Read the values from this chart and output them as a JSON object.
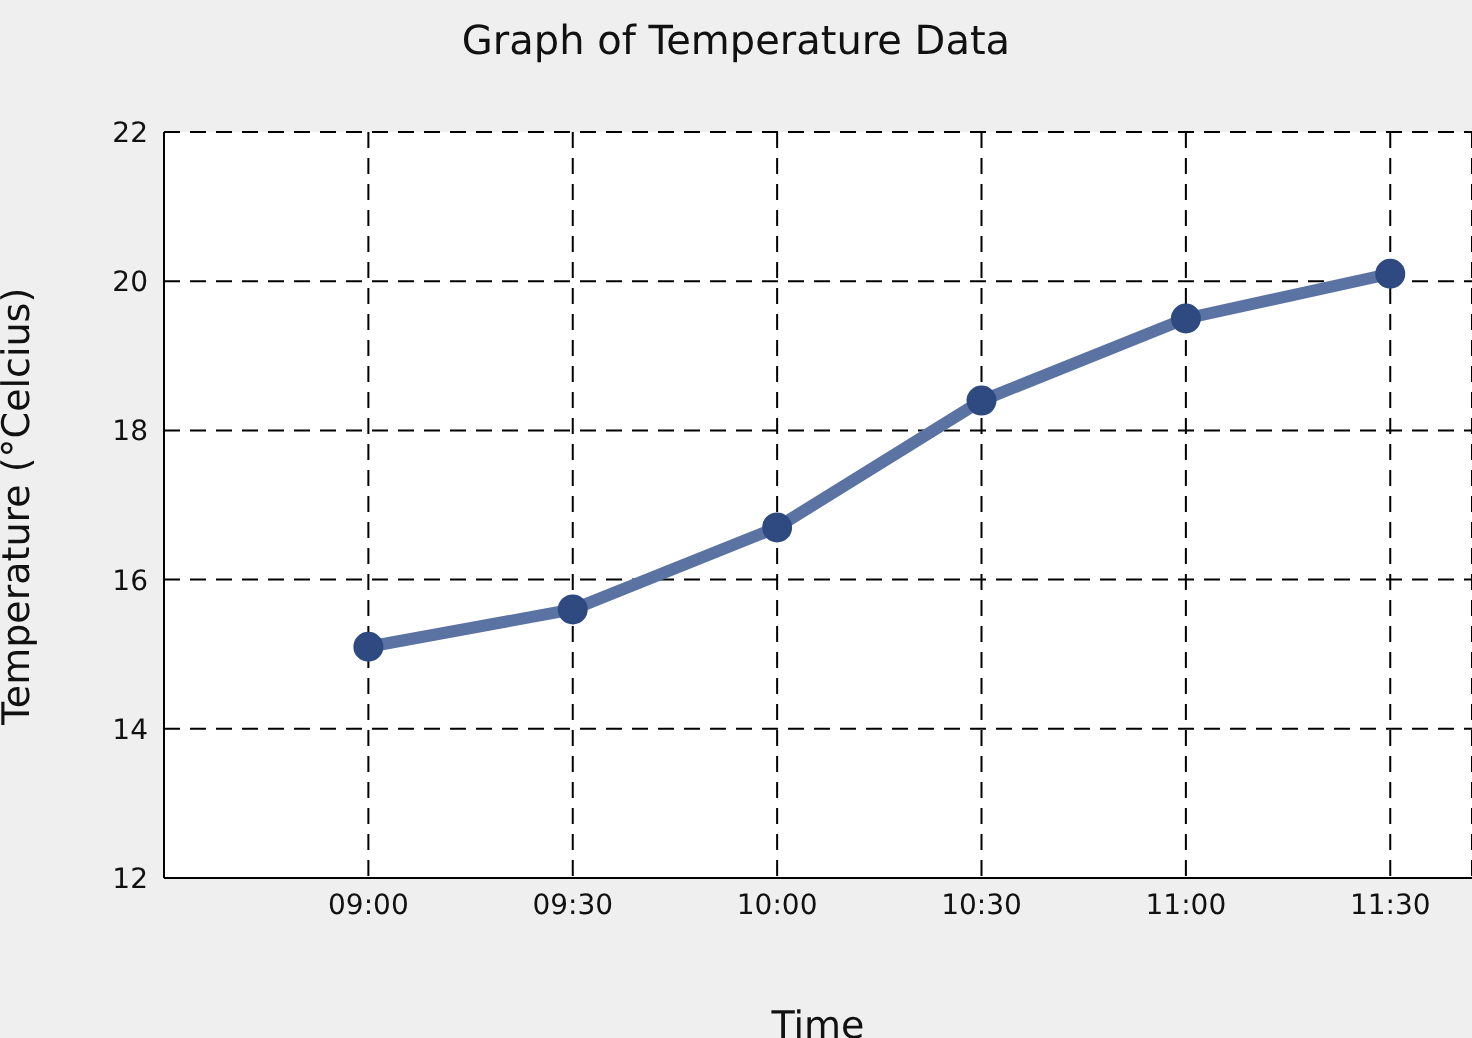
{
  "chart_data": {
    "type": "line",
    "title": "Graph of Temperature Data",
    "xlabel": "Time",
    "ylabel": "Temperature (°Celcius)",
    "x": [
      9,
      9.5,
      10,
      10.5,
      11,
      11.5
    ],
    "series": [
      {
        "color": "#5b73a3",
        "values": [
          15.1,
          15.6,
          16.7,
          18.4,
          19.5,
          20.1
        ]
      }
    ],
    "xlim": [
      8.5,
      11.7
    ],
    "xticks": [
      {
        "value": 9,
        "label": "09:00"
      },
      {
        "value": 9.5,
        "label": "09:30"
      },
      {
        "value": 10,
        "label": "10:00"
      },
      {
        "value": 10.5,
        "label": "10:30"
      },
      {
        "value": 11,
        "label": "11:00"
      },
      {
        "value": 11.5,
        "label": "11:30"
      }
    ],
    "ylim": [
      12,
      22
    ],
    "yticks": [
      12,
      14,
      16,
      18,
      20,
      22
    ],
    "grid": true,
    "marker": "circle",
    "line_style": "solid"
  }
}
